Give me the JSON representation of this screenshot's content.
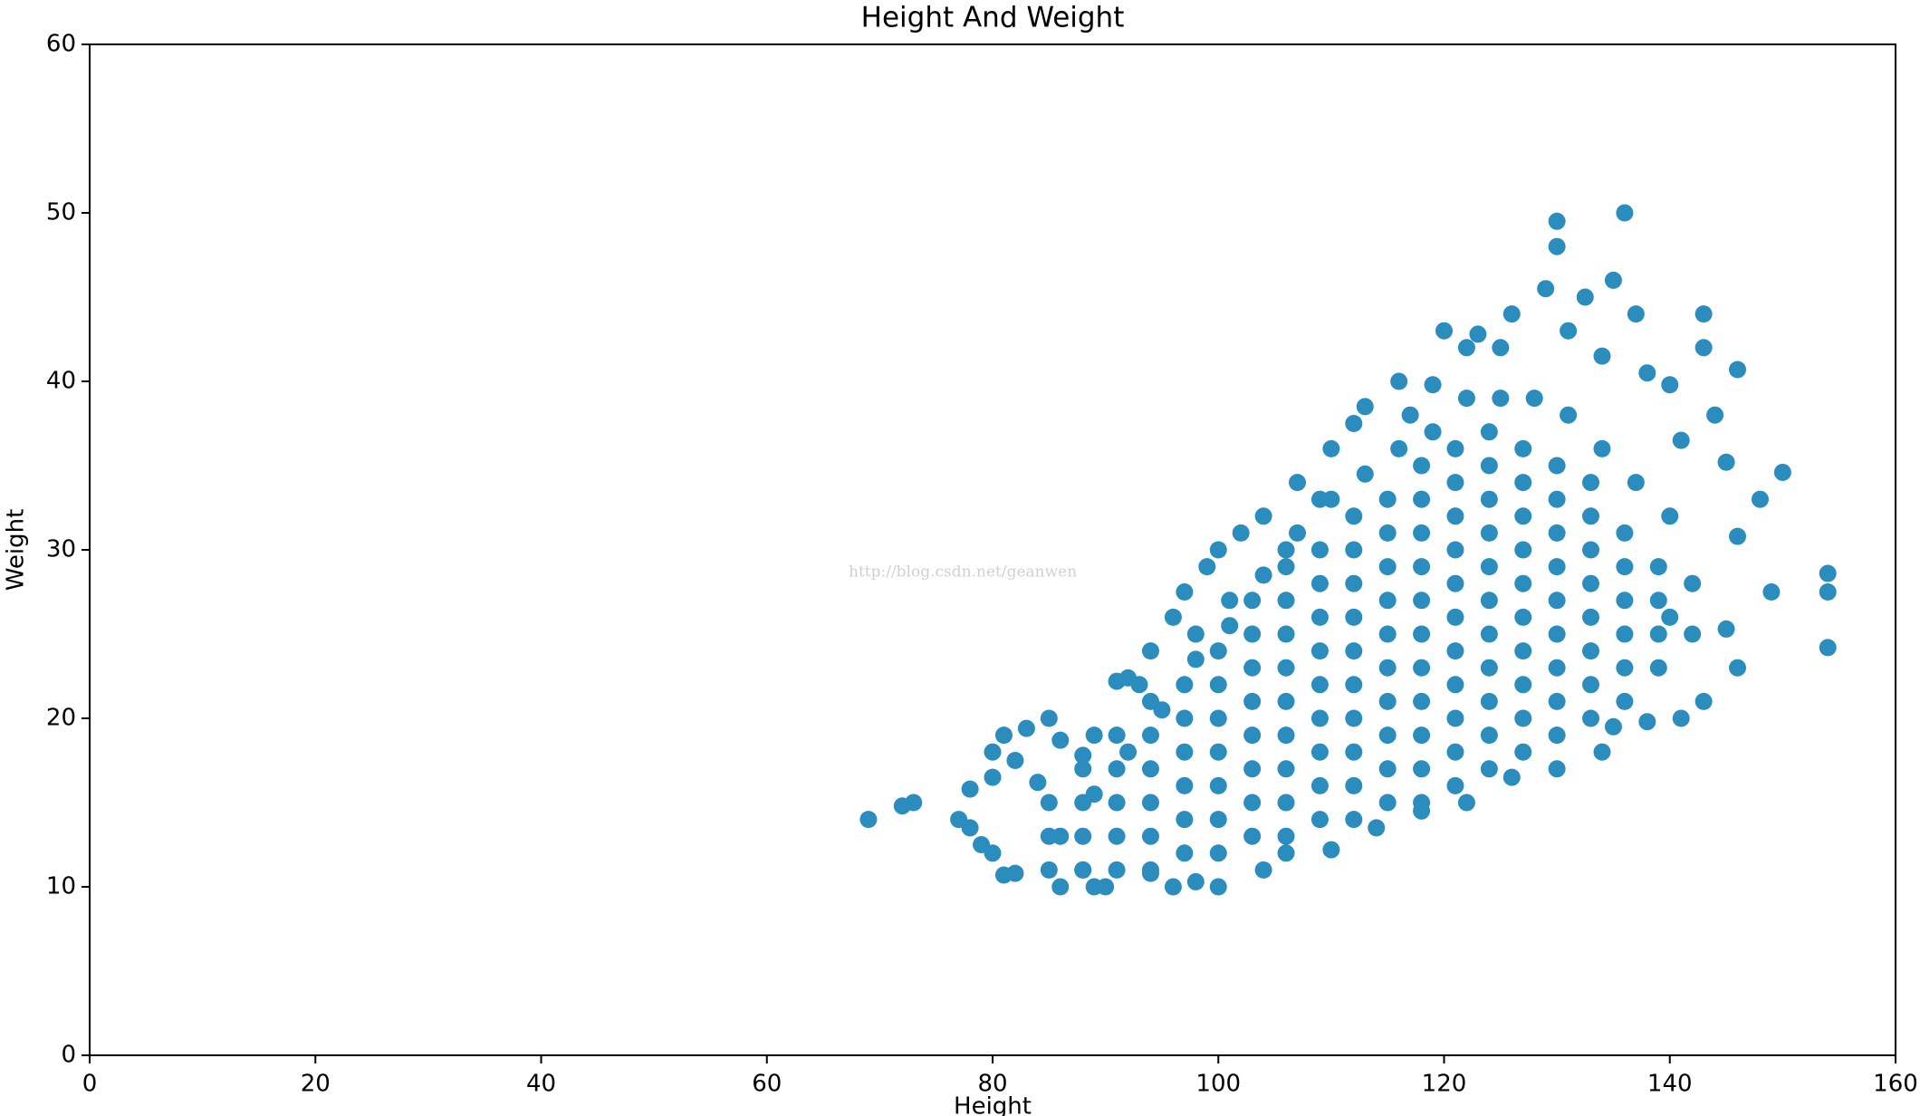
{
  "chart_data": {
    "type": "scatter",
    "title": "Height And Weight",
    "x_label": "Height",
    "y_label": "Weight",
    "watermark": "http://blog.csdn.net/geanwen",
    "color": "#2b8cbe",
    "xlim": [
      0,
      160
    ],
    "xticks": [
      0,
      20,
      40,
      60,
      80,
      100,
      120,
      140,
      160
    ],
    "ylim": [
      0,
      60
    ],
    "yticks": [
      0,
      10,
      20,
      30,
      40,
      50,
      60
    ],
    "grid": false,
    "x": [
      69,
      72,
      73,
      77,
      78,
      78,
      79,
      80,
      80,
      80,
      81,
      81,
      82,
      82,
      83,
      84,
      85,
      86,
      86,
      88,
      89,
      89,
      90,
      91,
      92,
      93,
      94,
      96,
      96,
      97,
      98,
      99,
      100,
      100,
      101,
      102,
      104,
      106,
      107,
      109,
      110,
      112,
      113,
      116,
      117,
      119,
      120,
      122,
      123,
      125,
      126,
      129,
      130,
      130,
      131,
      132.5,
      134,
      135,
      136,
      137,
      138,
      140,
      141,
      143,
      143,
      144,
      145,
      146,
      146,
      148,
      149,
      150,
      154,
      154,
      154,
      146,
      145,
      143,
      141,
      138,
      135,
      134,
      130,
      126,
      122,
      118,
      114,
      110,
      106,
      104,
      98,
      94,
      88,
      142,
      142,
      140,
      140,
      137,
      134,
      131,
      128,
      125,
      122,
      119,
      116,
      113,
      110,
      107,
      104,
      101,
      98,
      95,
      92,
      89,
      86,
      85,
      85,
      85,
      88,
      88,
      88,
      88,
      91,
      91,
      91,
      91,
      91,
      94,
      94,
      94,
      94,
      94,
      94,
      97,
      97,
      97,
      97,
      97,
      97,
      100,
      100,
      100,
      100,
      100,
      100,
      100,
      103,
      103,
      103,
      103,
      103,
      103,
      103,
      103,
      106,
      106,
      106,
      106,
      106,
      106,
      106,
      106,
      106,
      109,
      109,
      109,
      109,
      109,
      109,
      109,
      109,
      109,
      112,
      112,
      112,
      112,
      112,
      112,
      112,
      112,
      112,
      112,
      115,
      115,
      115,
      115,
      115,
      115,
      115,
      115,
      115,
      115,
      118,
      118,
      118,
      118,
      118,
      118,
      118,
      118,
      118,
      118,
      118,
      121,
      121,
      121,
      121,
      121,
      121,
      121,
      121,
      121,
      121,
      121,
      124,
      124,
      124,
      124,
      124,
      124,
      124,
      124,
      124,
      124,
      124,
      127,
      127,
      127,
      127,
      127,
      127,
      127,
      127,
      127,
      127,
      130,
      130,
      130,
      130,
      130,
      130,
      130,
      130,
      130,
      133,
      133,
      133,
      133,
      133,
      133,
      133,
      133,
      136,
      136,
      136,
      136,
      136,
      136,
      139,
      139,
      139,
      139
    ],
    "values": [
      14,
      14.8,
      15,
      14,
      13.5,
      15.8,
      12.5,
      12,
      18,
      16.5,
      19,
      10.7,
      17.5,
      10.8,
      19.4,
      16.2,
      20,
      18.7,
      10,
      17.8,
      19,
      10,
      10,
      22.2,
      22.4,
      22,
      24,
      26,
      10,
      27.5,
      25,
      29,
      30,
      10,
      27,
      31,
      32,
      30,
      34,
      33,
      36,
      37.5,
      38.5,
      40,
      38,
      39.8,
      43,
      42,
      42.8,
      42,
      44,
      45.5,
      49.5,
      48,
      43,
      45,
      41.5,
      46,
      50,
      44,
      40.5,
      39.8,
      36.5,
      44,
      42,
      38,
      35.2,
      40.7,
      30.8,
      33,
      27.5,
      34.6,
      28.6,
      27.5,
      24.2,
      23,
      25.3,
      21,
      20,
      19.8,
      19.5,
      18,
      17,
      16.5,
      15,
      14.5,
      13.5,
      12.2,
      12,
      11,
      10.3,
      10.8,
      11,
      28,
      25,
      32,
      26,
      34,
      36,
      38,
      39,
      39,
      39,
      37,
      36,
      34.5,
      33,
      31,
      28.5,
      25.5,
      23.5,
      20.5,
      18,
      15.5,
      13,
      11,
      13,
      15,
      11,
      13,
      15,
      17,
      11,
      13,
      15,
      17,
      19,
      11,
      13,
      15,
      17,
      19,
      21,
      12,
      14,
      16,
      18,
      20,
      22,
      12,
      14,
      16,
      18,
      20,
      22,
      24,
      13,
      15,
      17,
      19,
      21,
      23,
      25,
      27,
      13,
      15,
      17,
      19,
      21,
      23,
      25,
      27,
      29,
      14,
      16,
      18,
      20,
      22,
      24,
      26,
      28,
      30,
      14,
      16,
      18,
      20,
      22,
      24,
      26,
      28,
      30,
      32,
      15,
      17,
      19,
      21,
      23,
      25,
      27,
      29,
      31,
      33,
      15,
      17,
      19,
      21,
      23,
      25,
      27,
      29,
      31,
      33,
      35,
      16,
      18,
      20,
      22,
      24,
      26,
      28,
      30,
      32,
      34,
      36,
      17,
      19,
      21,
      23,
      25,
      27,
      29,
      31,
      33,
      35,
      37,
      18,
      20,
      22,
      24,
      26,
      28,
      30,
      32,
      34,
      36,
      19,
      21,
      23,
      25,
      27,
      29,
      31,
      33,
      35,
      20,
      22,
      24,
      26,
      28,
      30,
      32,
      34,
      21,
      23,
      25,
      27,
      29,
      31,
      23,
      25,
      27,
      29
    ]
  }
}
